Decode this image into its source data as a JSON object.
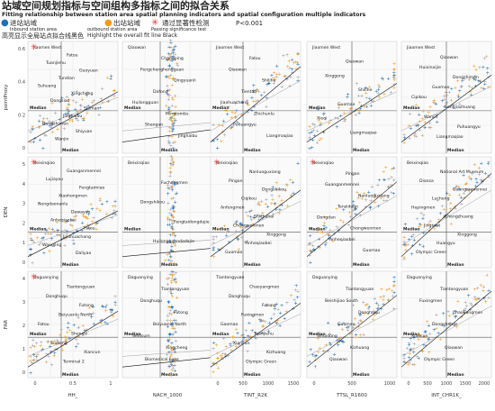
{
  "header": {
    "title_cn": "站域空间规划指标与空间组构多指标之间的拟合关系",
    "title_en": "Fitting relationship between station area spatial planning indicators and spatial configuration multiple indicators",
    "legend": [
      {
        "cn": "进站站域",
        "en": "Inbound station area",
        "color": "#1f6fb5",
        "marker": "dot"
      },
      {
        "cn": "出站站域",
        "en": "outbound station area",
        "color": "#f39a1c",
        "marker": "dot"
      },
      {
        "cn": "通过显著性检测",
        "en": "Passing significance test",
        "color": "#e03a3a",
        "marker": "asterisk"
      }
    ],
    "pvalue": "P<0.001",
    "note_cn": "高亮显示全局站点拟合线黑色",
    "note_en": "Highlight the overall fit line   Black"
  },
  "chart_data": {
    "type": "scatter",
    "rows": [
      "pointProxy",
      "DEN",
      "FAR"
    ],
    "columns": [
      "HH_",
      "NACH_1000",
      "TINT_R2K",
      "TTSL_R1600",
      "INT_CHR1K_"
    ],
    "median_label": "Median",
    "x_axes": [
      {
        "ticks": [
          "0",
          "0.5",
          "1"
        ],
        "ylim_note": ""
      },
      {
        "ticks": [
          "",
          ""
        ],
        "ylim_note": ""
      },
      {
        "ticks": [
          "0",
          "500",
          "1000",
          "1500"
        ]
      },
      {
        "ticks": [
          "0",
          "500",
          "1000"
        ]
      },
      {
        "ticks": [
          "0",
          "500",
          "1000",
          "1500",
          "2000"
        ]
      }
    ],
    "y_axes": [
      {
        "ticks": [
          "0.6",
          "0.4",
          "0.2",
          "0"
        ]
      },
      {
        "ticks": [
          "5",
          "4",
          "3",
          "2",
          "1",
          "0"
        ]
      },
      {
        "ticks": [
          "4",
          "3",
          "2",
          "1",
          "0"
        ]
      }
    ],
    "significant_panels": [
      "1-1",
      "2-1",
      "2-3",
      "2-4",
      "3-1"
    ],
    "stations": {
      "r1c1": [
        "Jiaomen West",
        "Fatou",
        "Tuanjiehu",
        "Guoyuan",
        "Tundian",
        "Suhuang",
        "Xingcheng",
        "Dongsiao",
        "Shiman",
        "Jinghaibu",
        "Dongzhimen",
        "Shiyuan",
        "Wanjin"
      ],
      "r1c2": [
        "Qiaowan",
        "Changping",
        "Fengchenghengguan",
        "Qingyuanli",
        "Dafong",
        "Huilongguan",
        "Mingtombs",
        "Shangan",
        "Jinghaibu"
      ],
      "r1c3": [
        "Jiaomen West",
        "Fatou",
        "Qiaowan",
        "Shilihe",
        "Tientan",
        "Jiaohuachang",
        "Zhichunlu",
        "Puhuangyu",
        "Liangmaqiao"
      ],
      "r1c4": [
        "Jiaomen West",
        "Qiaowan",
        "Xinggong",
        "Shilihe",
        "Guomao",
        "Xieqi",
        "Liangmaqiao"
      ],
      "r1c5": [
        "Jiaomen West",
        "Qiaowan",
        "Huixinxijie",
        "Dongzhimen",
        "Guomao",
        "Cipikou",
        "Songjiazhuang",
        "Wanjin",
        "Puhuangyu",
        "Liangmaqiao"
      ],
      "r2c1": [
        "Beixinqiao",
        "Guanganmennei",
        "Lujiayou",
        "Fengtaimiao",
        "Xiaohongmen",
        "Nongdaonanlu",
        "Dawayao",
        "Anheqiaobei",
        "Fatou",
        "Jiaohuachang",
        "Wangjing",
        "Daliyao"
      ],
      "r2c2": [
        "Beixinqiao",
        "Fuchengmen",
        "Dongshikou",
        "Fengtaidongdajie",
        "Huilongguandadajie"
      ],
      "r2c3": [
        "Beixinqiao",
        "Nanluoguxiang",
        "Pingan",
        "Dongshikou",
        "Ciqikou",
        "Anfengmen",
        "Shichahai",
        "Chongwenmen",
        "Xinggong",
        "Anheqiaobei",
        "Guomao"
      ],
      "r2c4": [
        "Beixinqiao",
        "Pingan",
        "Guanganmennei",
        "Nanluoguxiang",
        "Tenziduan",
        "Dongdan",
        "Chongwenmen",
        "Anheqiaobei",
        "Guomao"
      ],
      "r2c5": [
        "Beixinqiao",
        "National Art Museum",
        "Dianza",
        "Guanganmennei",
        "Lucheng",
        "Hepingmen",
        "Chengzhuang",
        "Jingtaixi",
        "Xinggong",
        "Huangyu",
        "Olympic Green"
      ],
      "r3c1": [
        "Daguanying",
        "Tiantongyuan",
        "Donghuqu",
        "Futong",
        "Beiyuanlu North",
        "Fatou",
        "Shengsi",
        "Sudlong",
        "Xiancun",
        "Terminal 2"
      ],
      "r3c2": [
        "Daguanying",
        "Tiantongyuan",
        "Donghuqu",
        "Futong",
        "Beiyuanlu North",
        "Seidsum",
        "Xingcheng",
        "Biomedical base"
      ],
      "r3c3": [
        "Tiantongyuan",
        "Chaoyangmen",
        "Donghuqu",
        "Futong",
        "Fuxingmen",
        "Gaomao",
        "Tuanjiehu",
        "Xiancun",
        "Kizhuang",
        "Olympic Green"
      ],
      "r3c4": [
        "Daguanying",
        "Tiantongyuan",
        "Beishijiao South",
        "Donghuqu",
        "Guomao",
        "Sihuidong",
        "Kizhuang",
        "Qiaowan"
      ],
      "r3c5": [
        "Daguanying",
        "Tiantongyuan",
        "Fuxingmen",
        "Chaoyangmen",
        "Dongshengs",
        "Xiancun",
        "Qiaowan",
        "Olympic Green"
      ]
    }
  }
}
